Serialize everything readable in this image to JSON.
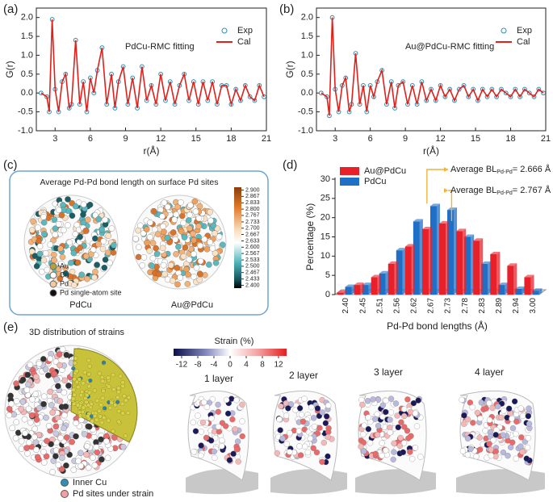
{
  "chart_data": [
    {
      "type": "line",
      "panel_label": "(a)",
      "annotation": "PdCu-RMC fitting",
      "xlabel": "r(Å)",
      "ylabel": "G(r)",
      "x": [
        1.8,
        2.3,
        2.5,
        2.75,
        3.0,
        3.3,
        3.6,
        3.9,
        4.2,
        4.4,
        4.75,
        5.1,
        5.4,
        5.7,
        6.0,
        6.3,
        6.6,
        7.0,
        7.4,
        7.8,
        8.1,
        8.4,
        8.8,
        9.2,
        9.6,
        10.0,
        10.4,
        10.8,
        11.2,
        11.6,
        12.0,
        12.4,
        12.8,
        13.2,
        13.6,
        14.0,
        14.4,
        14.8,
        15.2,
        15.6,
        16.0,
        16.4,
        16.8,
        17.2,
        17.6,
        18.0,
        18.4,
        18.8,
        19.2,
        19.6,
        20.0,
        20.4,
        20.8
      ],
      "series": [
        {
          "name": "Exp",
          "color": "#2b8db3",
          "style": "markers",
          "values": [
            0,
            -0.1,
            -0.5,
            1.95,
            0.1,
            -0.5,
            0.3,
            0.5,
            -0.4,
            -0.3,
            1.4,
            -0.3,
            0.3,
            -0.5,
            0.4,
            0.0,
            0.6,
            1.2,
            -0.3,
            0.5,
            -0.4,
            0.3,
            0.7,
            -0.3,
            0.4,
            -0.4,
            0.7,
            -0.2,
            0.2,
            -0.3,
            0.5,
            -0.2,
            0.3,
            -0.3,
            0.2,
            0.5,
            -0.2,
            0.3,
            -0.3,
            0.3,
            -0.2,
            0.3,
            -0.3,
            0.2,
            0.2,
            -0.3,
            0.1,
            -0.2,
            0.2,
            -0.1,
            -0.2,
            0.2,
            -0.1
          ]
        },
        {
          "name": "Cal",
          "color": "#e0201b",
          "style": "line",
          "values": [
            0,
            -0.1,
            -0.5,
            1.95,
            0.1,
            -0.5,
            0.3,
            0.5,
            -0.4,
            -0.3,
            1.4,
            -0.3,
            0.3,
            -0.5,
            0.4,
            0.0,
            0.6,
            1.2,
            -0.3,
            0.5,
            -0.4,
            0.3,
            0.7,
            -0.3,
            0.4,
            -0.4,
            0.7,
            -0.2,
            0.2,
            -0.3,
            0.5,
            -0.2,
            0.3,
            -0.3,
            0.2,
            0.5,
            -0.2,
            0.3,
            -0.3,
            0.3,
            -0.2,
            0.3,
            -0.3,
            0.2,
            0.2,
            -0.3,
            0.1,
            -0.2,
            0.2,
            -0.1,
            -0.2,
            0.2,
            -0.1
          ]
        }
      ],
      "xlim": [
        1.4,
        21
      ],
      "xticks": [
        3,
        6,
        9,
        12,
        15,
        18,
        21
      ],
      "ylim": [
        -1.0,
        2.25
      ],
      "yticks": [
        {
          "value": -1,
          "label": "-1.0"
        },
        -0.5,
        {
          "value": 0,
          "label": "0.0"
        },
        0.5,
        {
          "value": 1,
          "label": "1.0"
        },
        1.5,
        {
          "value": 2,
          "label": "2.0"
        }
      ]
    },
    {
      "type": "line",
      "panel_label": "(b)",
      "annotation": "Au@PdCu-RMC fitting",
      "xlabel": "r(Å)",
      "ylabel": "G(r)",
      "x": [
        1.8,
        2.3,
        2.5,
        2.75,
        3.0,
        3.3,
        3.6,
        3.9,
        4.2,
        4.4,
        4.75,
        5.1,
        5.4,
        5.7,
        6.0,
        6.3,
        6.6,
        7.0,
        7.4,
        7.8,
        8.1,
        8.4,
        8.8,
        9.2,
        9.6,
        10.0,
        10.4,
        10.8,
        11.2,
        11.6,
        12.0,
        12.4,
        12.8,
        13.2,
        13.6,
        14.0,
        14.4,
        14.8,
        15.2,
        15.6,
        16.0,
        16.4,
        16.8,
        17.2,
        17.6,
        18.0,
        18.4,
        18.8,
        19.2,
        19.6,
        20.0,
        20.4,
        20.8
      ],
      "series": [
        {
          "name": "Exp",
          "color": "#2b8db3",
          "style": "markers",
          "values": [
            0,
            -0.1,
            -0.6,
            2.0,
            0.1,
            -0.5,
            0.2,
            0.4,
            -0.5,
            -0.3,
            1.05,
            -0.3,
            0.2,
            -0.5,
            0.2,
            -0.1,
            0.3,
            0.6,
            -0.3,
            0.3,
            -0.4,
            0.2,
            0.3,
            -0.3,
            0.2,
            -0.3,
            0.3,
            -0.2,
            0.1,
            -0.2,
            0.2,
            -0.1,
            0.1,
            -0.2,
            0.1,
            0.2,
            -0.1,
            0.1,
            -0.2,
            0.1,
            -0.1,
            0.1,
            -0.1,
            0.1,
            0.0,
            -0.1,
            0.1,
            -0.1,
            0.1,
            0.0,
            -0.1,
            0.1,
            0.0
          ]
        },
        {
          "name": "Cal",
          "color": "#e0201b",
          "style": "line",
          "values": [
            0,
            -0.1,
            -0.6,
            2.0,
            0.1,
            -0.5,
            0.2,
            0.4,
            -0.5,
            -0.3,
            1.05,
            -0.3,
            0.2,
            -0.5,
            0.2,
            -0.1,
            0.3,
            0.6,
            -0.3,
            0.3,
            -0.4,
            0.2,
            0.3,
            -0.3,
            0.2,
            -0.3,
            0.3,
            -0.2,
            0.1,
            -0.2,
            0.2,
            -0.1,
            0.1,
            -0.2,
            0.1,
            0.2,
            -0.1,
            0.1,
            -0.2,
            0.1,
            -0.1,
            0.1,
            -0.1,
            0.1,
            0.0,
            -0.1,
            0.1,
            -0.1,
            0.1,
            0.0,
            -0.1,
            0.1,
            0.0
          ]
        }
      ],
      "xlim": [
        1.4,
        21
      ],
      "xticks": [
        3,
        6,
        9,
        12,
        15,
        18,
        21
      ],
      "ylim": [
        -1.0,
        2.25
      ],
      "yticks": [
        {
          "value": -1,
          "label": "-1.0"
        },
        -0.5,
        {
          "value": 0,
          "label": "0.0"
        },
        0.5,
        {
          "value": 1,
          "label": "1.0"
        },
        1.5,
        {
          "value": 2,
          "label": "2.0"
        }
      ]
    },
    {
      "type": "bar3d",
      "panel_label": "(d)",
      "xlabel": "Pd-Pd bond lengths (Å)",
      "ylabel": "Percentage (%)",
      "categories": [
        "2.40",
        "2.45",
        "2.51",
        "2.56",
        "2.62",
        "2.67",
        "2.73",
        "2.78",
        "2.83",
        "2.89",
        "2.94",
        "3.00"
      ],
      "series": [
        {
          "name": "Au@PdCu",
          "color": "#e8202a",
          "values": [
            0.5,
            2.5,
            4.5,
            8,
            12.5,
            17,
            18.5,
            16.5,
            14,
            10.5,
            7.5,
            4.5
          ]
        },
        {
          "name": "PdCu",
          "color": "#1f6fc6",
          "values": [
            2,
            2.5,
            5.5,
            11.5,
            19,
            23,
            22,
            15,
            8,
            2.5,
            1.5,
            1
          ]
        }
      ],
      "ylim": [
        0,
        30
      ],
      "yticks": [
        0,
        5,
        10,
        15,
        20,
        25,
        30
      ],
      "annotations": [
        {
          "text": "Average BL",
          "subscript": "Pd-Pd",
          "rest": "= 2.666 Å"
        },
        {
          "text": "Average BL",
          "subscript": "Pd-Pd",
          "rest": "= 2.767 Å"
        }
      ]
    }
  ],
  "panel_c": {
    "panel_label": "(c)",
    "title": "Average Pd-Pd bond length on surface Pd sites",
    "legend": [
      "Au",
      "Cu",
      "Pd",
      "Pd single-atom site"
    ],
    "labels": [
      "PdCu",
      "Au@PdCu"
    ],
    "colorbar": {
      "lim": [
        2.385,
        2.915
      ],
      "ticks": [
        {
          "value": 2.9,
          "label": "2.900"
        },
        {
          "value": 2.867,
          "label": "2.867"
        },
        {
          "value": 2.833,
          "label": "2.833"
        },
        {
          "value": 2.8,
          "label": "2.800"
        },
        {
          "value": 2.767,
          "label": "2.767"
        },
        {
          "value": 2.733,
          "label": "2.733"
        },
        {
          "value": 2.7,
          "label": "2.700"
        },
        {
          "value": 2.667,
          "label": "2.667"
        },
        {
          "value": 2.633,
          "label": "2.633"
        },
        {
          "value": 2.6,
          "label": "2.600"
        },
        {
          "value": 2.567,
          "label": "2.567"
        },
        {
          "value": 2.533,
          "label": "2.533"
        },
        {
          "value": 2.5,
          "label": "2.500"
        },
        {
          "value": 2.467,
          "label": "2.467"
        },
        {
          "value": 2.433,
          "label": "2.433"
        },
        {
          "value": 2.4,
          "label": "2.400"
        }
      ]
    }
  },
  "panel_e": {
    "panel_label": "(e)",
    "title": "3D distribution of strains",
    "colorbar": {
      "title": "Strain (%)",
      "lim": [
        -14,
        14
      ],
      "ticks": [
        -12,
        -8,
        -4,
        0,
        4,
        8,
        12
      ]
    },
    "layers": [
      "1 layer",
      "2 layer",
      "3 layer",
      "4 layer"
    ],
    "legend": [
      "Inner Cu",
      "Pd sites under strain"
    ]
  }
}
